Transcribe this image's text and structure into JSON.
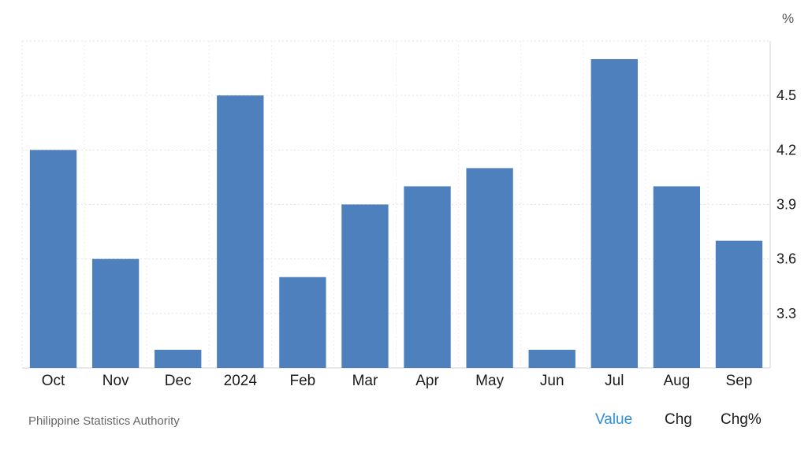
{
  "chart_data": {
    "type": "bar",
    "categories": [
      "Oct",
      "Nov",
      "Dec",
      "2024",
      "Feb",
      "Mar",
      "Apr",
      "May",
      "Jun",
      "Jul",
      "Aug",
      "Sep"
    ],
    "series": [
      {
        "values": [
          4.2,
          3.6,
          3.1,
          4.5,
          3.5,
          3.9,
          4.0,
          4.1,
          3.1,
          4.7,
          4.0,
          3.7
        ]
      }
    ],
    "yticks": [
      3.3,
      3.6,
      3.9,
      4.2,
      4.5
    ],
    "ylim": [
      3.0,
      4.8
    ],
    "ylabel": "%",
    "grid": true,
    "yaxis_position": "right",
    "bar_color": "#4d80bd"
  },
  "source": "Philippine Statistics Authority",
  "toggles": {
    "value": "Value",
    "chg": "Chg",
    "chg_pct": "Chg%"
  },
  "colors": {
    "active_toggle": "#2f8fd8"
  }
}
